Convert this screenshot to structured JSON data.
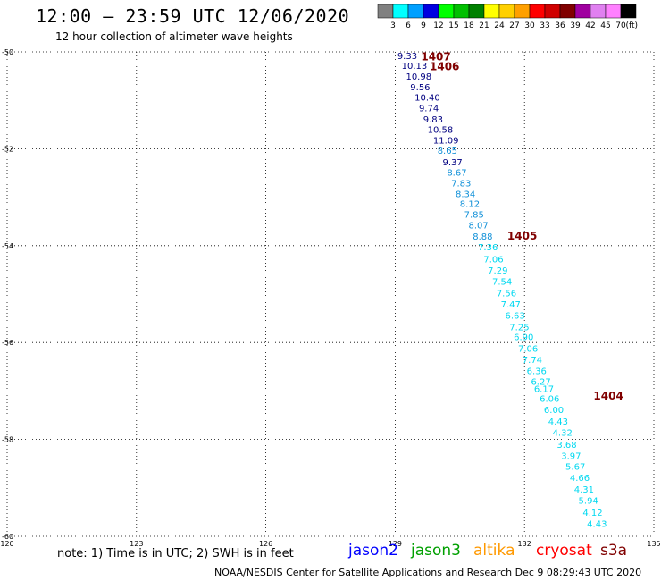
{
  "header": {
    "title": "12:00 – 23:59 UTC 12/06/2020",
    "subtitle": "12 hour collection of altimeter wave heights"
  },
  "legend": {
    "unit": "(ft)",
    "labels": [
      "3",
      "6",
      "9",
      "12",
      "15",
      "18",
      "21",
      "24",
      "27",
      "30",
      "33",
      "36",
      "39",
      "42",
      "45",
      "70"
    ],
    "colors": [
      "#808080",
      "#00ffff",
      "#00a0ff",
      "#0000e0",
      "#00ff00",
      "#00c000",
      "#008000",
      "#ffff00",
      "#ffd000",
      "#ffa000",
      "#ff0000",
      "#d00000",
      "#800000",
      "#a000a0",
      "#e080f0",
      "#ff80ff",
      "#000000"
    ]
  },
  "footer": {
    "note": "note:  1) Time is in UTC;  2) SWH is in feet",
    "satellites": [
      {
        "name": "jason2",
        "color": "#0000ff"
      },
      {
        "name": "jason3",
        "color": "#00a000"
      },
      {
        "name": "altika",
        "color": "#ff9900"
      },
      {
        "name": "cryosat",
        "color": "#ff0000"
      },
      {
        "name": "s3a",
        "color": "#800000"
      }
    ],
    "credit": "NOAA/NESDIS Center for Satellite Applications and Research    Dec  9 08:29:43 UTC 2020"
  },
  "chart_data": {
    "type": "scatter",
    "xlim": [
      120,
      135
    ],
    "ylim": [
      -60,
      -50
    ],
    "x_ticks": [
      120,
      123,
      126,
      129,
      132,
      135
    ],
    "y_ticks": [
      -50,
      -52,
      -54,
      -56,
      -58,
      -60
    ],
    "grid": true,
    "colors": {
      "dark": "#000080",
      "mid": "#1090d8",
      "light": "#00d8f0",
      "time": "#800000"
    },
    "time_labels": [
      {
        "label": "1407",
        "x": 129.6,
        "y": -50.1
      },
      {
        "label": "1406",
        "x": 129.8,
        "y": -50.3
      },
      {
        "label": "1405",
        "x": 131.6,
        "y": -53.8
      },
      {
        "label": "1404",
        "x": 133.6,
        "y": -57.1
      }
    ],
    "points": [
      {
        "x": 129.05,
        "y": -50.07,
        "v": "9.33",
        "c": "dark"
      },
      {
        "x": 129.15,
        "y": -50.28,
        "v": "10.13",
        "c": "dark"
      },
      {
        "x": 129.25,
        "y": -50.5,
        "v": "10.98",
        "c": "dark"
      },
      {
        "x": 129.35,
        "y": -50.72,
        "v": "9.56",
        "c": "dark"
      },
      {
        "x": 129.45,
        "y": -50.93,
        "v": "10.40",
        "c": "dark"
      },
      {
        "x": 129.55,
        "y": -51.15,
        "v": "9.74",
        "c": "dark"
      },
      {
        "x": 129.65,
        "y": -51.38,
        "v": "9.83",
        "c": "dark"
      },
      {
        "x": 129.75,
        "y": -51.6,
        "v": "10.58",
        "c": "dark"
      },
      {
        "x": 129.88,
        "y": -51.82,
        "v": "11.09",
        "c": "dark"
      },
      {
        "x": 129.98,
        "y": -52.03,
        "v": "8.65",
        "c": "mid"
      },
      {
        "x": 130.1,
        "y": -52.27,
        "v": "9.37",
        "c": "dark"
      },
      {
        "x": 130.2,
        "y": -52.48,
        "v": "8.67",
        "c": "mid"
      },
      {
        "x": 130.3,
        "y": -52.7,
        "v": "7.83",
        "c": "mid"
      },
      {
        "x": 130.4,
        "y": -52.92,
        "v": "8.34",
        "c": "mid"
      },
      {
        "x": 130.5,
        "y": -53.13,
        "v": "8.12",
        "c": "mid"
      },
      {
        "x": 130.6,
        "y": -53.35,
        "v": "7.85",
        "c": "mid"
      },
      {
        "x": 130.7,
        "y": -53.57,
        "v": "8.07",
        "c": "mid"
      },
      {
        "x": 130.8,
        "y": -53.8,
        "v": "8.88",
        "c": "mid"
      },
      {
        "x": 130.92,
        "y": -54.02,
        "v": "7.36",
        "c": "light"
      },
      {
        "x": 131.05,
        "y": -54.27,
        "v": "7.06",
        "c": "light"
      },
      {
        "x": 131.15,
        "y": -54.5,
        "v": "7.29",
        "c": "light"
      },
      {
        "x": 131.25,
        "y": -54.73,
        "v": "7.54",
        "c": "light"
      },
      {
        "x": 131.35,
        "y": -54.97,
        "v": "7.56",
        "c": "light"
      },
      {
        "x": 131.45,
        "y": -55.2,
        "v": "7.47",
        "c": "light"
      },
      {
        "x": 131.55,
        "y": -55.43,
        "v": "6.63",
        "c": "light"
      },
      {
        "x": 131.65,
        "y": -55.67,
        "v": "7.25",
        "c": "light"
      },
      {
        "x": 131.75,
        "y": -55.88,
        "v": "6.90",
        "c": "light"
      },
      {
        "x": 131.85,
        "y": -56.12,
        "v": "7.06",
        "c": "light"
      },
      {
        "x": 131.95,
        "y": -56.35,
        "v": "7.74",
        "c": "light"
      },
      {
        "x": 132.05,
        "y": -56.58,
        "v": "6.36",
        "c": "light"
      },
      {
        "x": 132.15,
        "y": -56.8,
        "v": "6.27",
        "c": "light"
      },
      {
        "x": 132.22,
        "y": -56.95,
        "v": "6.17",
        "c": "light"
      },
      {
        "x": 132.35,
        "y": -57.15,
        "v": "6.06",
        "c": "light"
      },
      {
        "x": 132.45,
        "y": -57.38,
        "v": "6.00",
        "c": "light"
      },
      {
        "x": 132.55,
        "y": -57.62,
        "v": "4.43",
        "c": "light"
      },
      {
        "x": 132.65,
        "y": -57.85,
        "v": "4.32",
        "c": "light"
      },
      {
        "x": 132.75,
        "y": -58.1,
        "v": "3.68",
        "c": "light"
      },
      {
        "x": 132.85,
        "y": -58.33,
        "v": "3.97",
        "c": "light"
      },
      {
        "x": 132.95,
        "y": -58.55,
        "v": "5.67",
        "c": "light"
      },
      {
        "x": 133.05,
        "y": -58.78,
        "v": "4.66",
        "c": "light"
      },
      {
        "x": 133.15,
        "y": -59.02,
        "v": "4.31",
        "c": "light"
      },
      {
        "x": 133.25,
        "y": -59.25,
        "v": "5.94",
        "c": "light"
      },
      {
        "x": 133.35,
        "y": -59.5,
        "v": "4.12",
        "c": "light"
      },
      {
        "x": 133.45,
        "y": -59.73,
        "v": "4.43",
        "c": "light"
      }
    ]
  }
}
